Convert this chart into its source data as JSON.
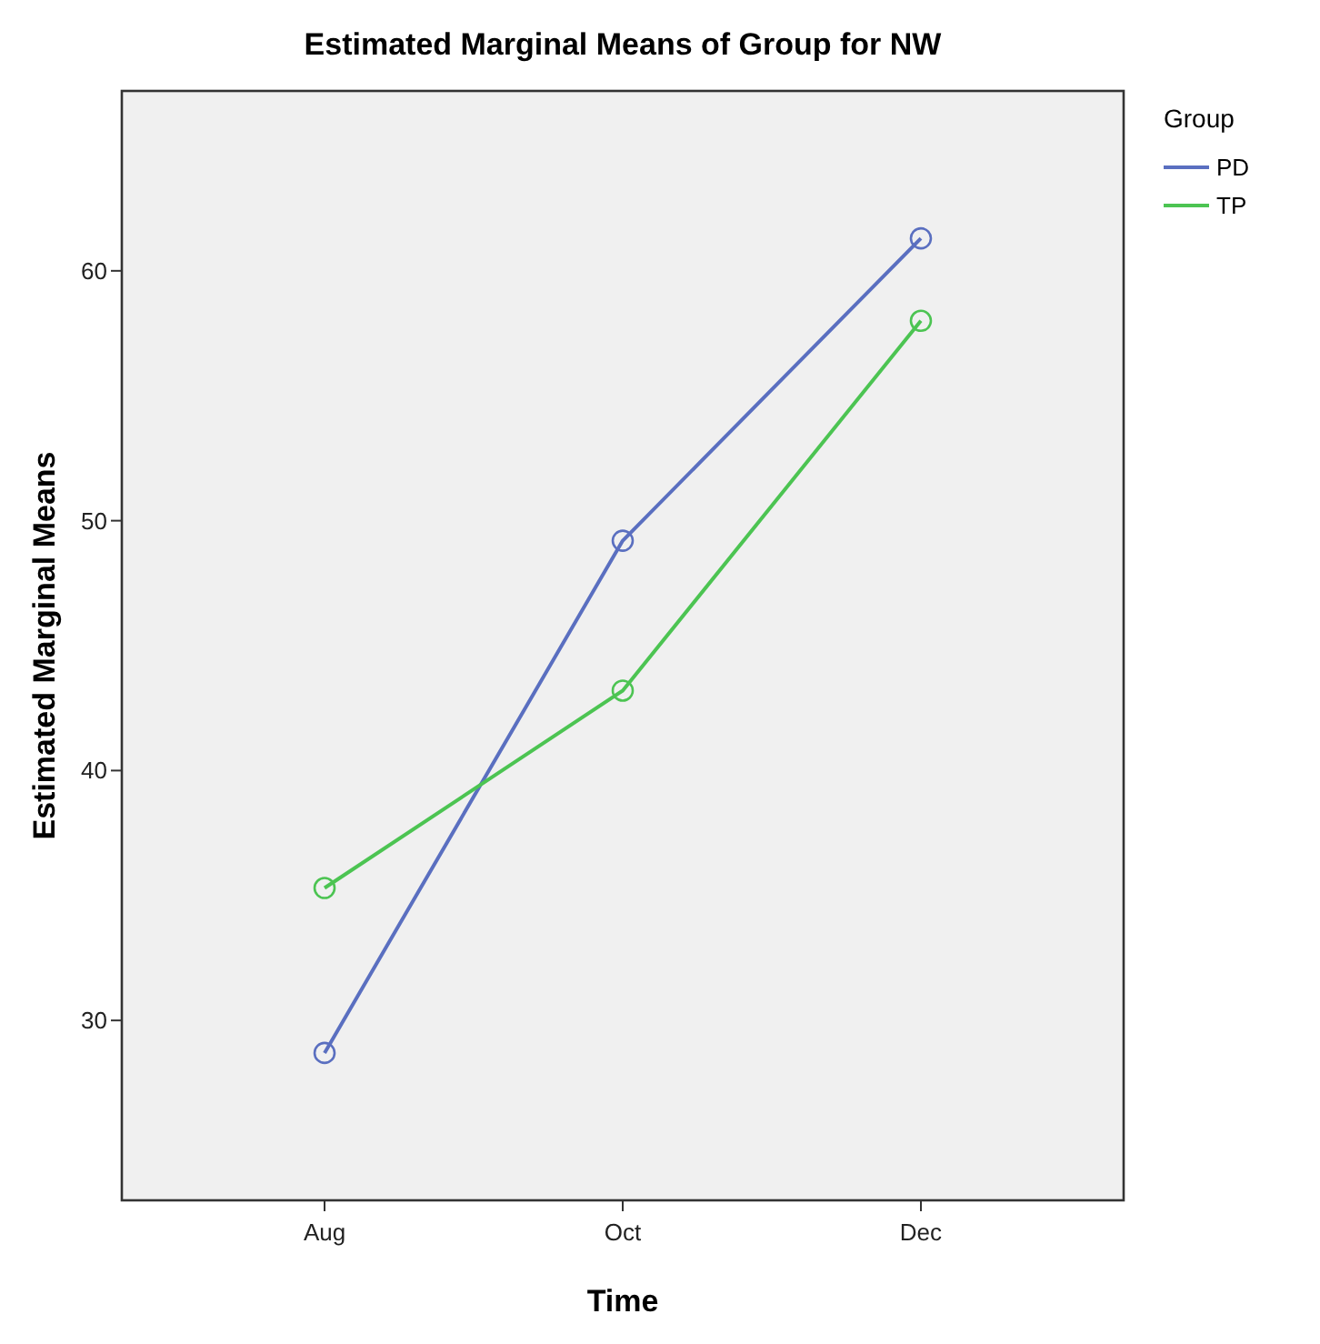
{
  "chart_data": {
    "type": "line",
    "title": "Estimated Marginal Means of Group for NW",
    "xlabel": "Time",
    "ylabel": "Estimated Marginal Means",
    "legend_title": "Group",
    "categories": [
      "Aug",
      "Oct",
      "Dec"
    ],
    "series": [
      {
        "name": "PD",
        "color": "#5a6fc0",
        "values": [
          28.7,
          49.2,
          61.3
        ]
      },
      {
        "name": "TP",
        "color": "#4cc452",
        "values": [
          35.3,
          43.2,
          58.0
        ]
      }
    ],
    "ylim": [
      22.8,
      67.2
    ],
    "yticks": [
      30,
      40,
      50,
      60
    ],
    "grid": false,
    "legend": "top right",
    "marker": "circle",
    "line_style": "solid"
  }
}
